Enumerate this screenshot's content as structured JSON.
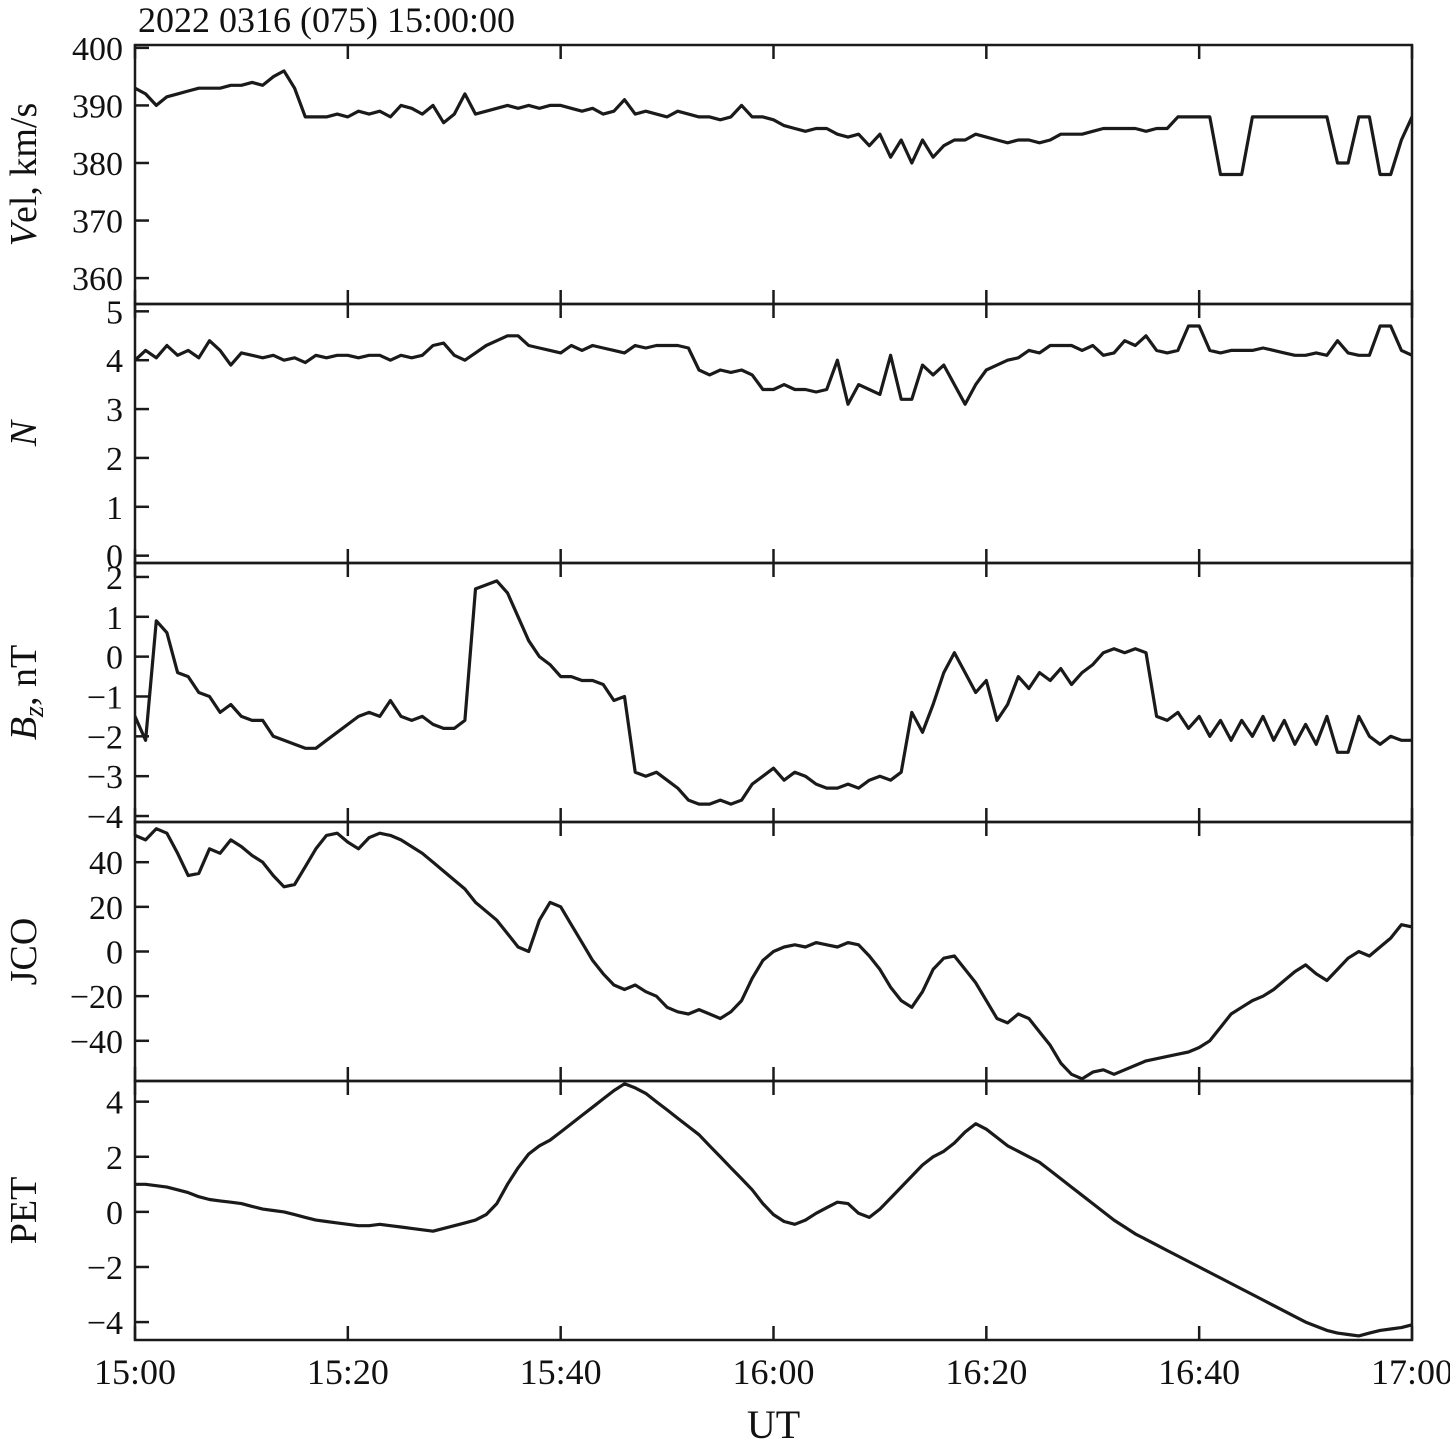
{
  "title": "2022 0316 (075) 15:00:00",
  "xlabel": "UT",
  "x_ticks": [
    "15:00",
    "15:20",
    "15:40",
    "16:00",
    "16:20",
    "16:40",
    "17:00"
  ],
  "x_tick_minutes": [
    0,
    20,
    40,
    60,
    80,
    100,
    120
  ],
  "x_range_minutes": [
    0,
    120
  ],
  "line_color": "#1a1a1a",
  "axis_color": "#1a1a1a",
  "background": "#ffffff",
  "chart_data": [
    {
      "type": "line",
      "name": "vel",
      "ylabel": "Vel, km/s",
      "ylabel_parts": [
        {
          "text": "V",
          "italic": true
        },
        {
          "text": "el, km/s",
          "italic": false
        }
      ],
      "ylim": [
        355.5,
        400.5
      ],
      "yticks": [
        360,
        370,
        380,
        390,
        400
      ],
      "values": [
        393,
        392,
        390,
        391.5,
        392,
        392.5,
        393,
        393,
        393,
        393.5,
        393.5,
        394,
        393.5,
        395,
        396,
        393,
        388,
        388,
        388,
        388.5,
        388,
        389,
        388.5,
        389,
        388,
        390,
        389.5,
        388.5,
        390,
        387,
        388.5,
        392,
        388.5,
        389,
        389.5,
        390,
        389.5,
        390,
        389.5,
        390,
        390,
        389.5,
        389,
        389.5,
        388.5,
        389,
        391,
        388.5,
        389,
        388.5,
        388,
        389,
        388.5,
        388,
        388,
        387.5,
        388,
        390,
        388,
        388,
        387.5,
        386.5,
        386,
        385.5,
        386,
        386,
        385,
        384.5,
        385,
        383,
        385,
        381,
        384,
        380,
        384,
        381,
        383,
        384,
        384,
        385,
        384.5,
        384,
        383.5,
        384,
        384,
        383.5,
        384,
        385,
        385,
        385,
        385.5,
        386,
        386,
        386,
        386,
        385.5,
        386,
        386,
        388,
        388,
        388,
        388,
        378,
        378,
        378,
        388,
        388,
        388,
        388,
        388,
        388,
        388,
        388,
        380,
        380,
        388,
        388,
        378,
        378,
        384,
        388
      ]
    },
    {
      "type": "line",
      "name": "n",
      "ylabel": "N",
      "ylabel_parts": [
        {
          "text": "N",
          "italic": true
        }
      ],
      "ylim": [
        -0.15,
        5.15
      ],
      "yticks": [
        0,
        1,
        2,
        3,
        4,
        5
      ],
      "values": [
        4.0,
        4.2,
        4.05,
        4.3,
        4.1,
        4.2,
        4.05,
        4.4,
        4.2,
        3.9,
        4.15,
        4.1,
        4.05,
        4.1,
        4.0,
        4.05,
        3.95,
        4.1,
        4.05,
        4.1,
        4.1,
        4.05,
        4.1,
        4.1,
        4.0,
        4.1,
        4.05,
        4.1,
        4.3,
        4.35,
        4.1,
        4.0,
        4.15,
        4.3,
        4.4,
        4.5,
        4.5,
        4.3,
        4.25,
        4.2,
        4.15,
        4.3,
        4.2,
        4.3,
        4.25,
        4.2,
        4.15,
        4.3,
        4.25,
        4.3,
        4.3,
        4.3,
        4.25,
        3.8,
        3.7,
        3.8,
        3.75,
        3.8,
        3.7,
        3.4,
        3.4,
        3.5,
        3.4,
        3.4,
        3.35,
        3.4,
        4.0,
        3.1,
        3.5,
        3.4,
        3.3,
        4.1,
        3.2,
        3.2,
        3.9,
        3.7,
        3.9,
        3.5,
        3.1,
        3.5,
        3.8,
        3.9,
        4.0,
        4.05,
        4.2,
        4.15,
        4.3,
        4.3,
        4.3,
        4.2,
        4.3,
        4.1,
        4.15,
        4.4,
        4.3,
        4.5,
        4.2,
        4.15,
        4.2,
        4.7,
        4.7,
        4.2,
        4.15,
        4.2,
        4.2,
        4.2,
        4.25,
        4.2,
        4.15,
        4.1,
        4.1,
        4.15,
        4.1,
        4.4,
        4.15,
        4.1,
        4.1,
        4.7,
        4.7,
        4.2,
        4.1
      ]
    },
    {
      "type": "line",
      "name": "bz",
      "ylabel": "Bz, nT",
      "ylabel_parts": [
        {
          "text": "B",
          "italic": true
        },
        {
          "text": "z",
          "italic": true,
          "sub": true
        },
        {
          "text": ", nT",
          "italic": false
        }
      ],
      "ylim": [
        -4.15,
        2.35
      ],
      "yticks": [
        -4,
        -3,
        -2,
        -1,
        0,
        1,
        2
      ],
      "values": [
        -1.5,
        -2.1,
        0.9,
        0.6,
        -0.4,
        -0.5,
        -0.9,
        -1.0,
        -1.4,
        -1.2,
        -1.5,
        -1.6,
        -1.6,
        -2.0,
        -2.1,
        -2.2,
        -2.3,
        -2.3,
        -2.1,
        -1.9,
        -1.7,
        -1.5,
        -1.4,
        -1.5,
        -1.1,
        -1.5,
        -1.6,
        -1.5,
        -1.7,
        -1.8,
        -1.8,
        -1.6,
        1.7,
        1.8,
        1.9,
        1.6,
        1.0,
        0.4,
        0.0,
        -0.2,
        -0.5,
        -0.5,
        -0.6,
        -0.6,
        -0.7,
        -1.1,
        -1.0,
        -2.9,
        -3.0,
        -2.9,
        -3.1,
        -3.3,
        -3.6,
        -3.7,
        -3.7,
        -3.6,
        -3.7,
        -3.6,
        -3.2,
        -3.0,
        -2.8,
        -3.1,
        -2.9,
        -3.0,
        -3.2,
        -3.3,
        -3.3,
        -3.2,
        -3.3,
        -3.1,
        -3.0,
        -3.1,
        -2.9,
        -1.4,
        -1.9,
        -1.2,
        -0.4,
        0.1,
        -0.4,
        -0.9,
        -0.6,
        -1.6,
        -1.2,
        -0.5,
        -0.8,
        -0.4,
        -0.6,
        -0.3,
        -0.7,
        -0.4,
        -0.2,
        0.1,
        0.2,
        0.1,
        0.2,
        0.1,
        -1.5,
        -1.6,
        -1.4,
        -1.8,
        -1.5,
        -2.0,
        -1.6,
        -2.1,
        -1.6,
        -2.0,
        -1.5,
        -2.1,
        -1.6,
        -2.2,
        -1.7,
        -2.2,
        -1.5,
        -2.4,
        -2.4,
        -1.5,
        -2.0,
        -2.2,
        -2.0,
        -2.1,
        -2.1
      ]
    },
    {
      "type": "line",
      "name": "jco",
      "ylabel": "JCO",
      "ylabel_parts": [
        {
          "text": "JCO",
          "italic": false
        }
      ],
      "ylim": [
        -58,
        58
      ],
      "yticks": [
        -40,
        -20,
        0,
        20,
        40
      ],
      "values": [
        52,
        50,
        55,
        53,
        44,
        34,
        35,
        46,
        44,
        50,
        47,
        43,
        40,
        34,
        29,
        30,
        38,
        46,
        52,
        53,
        49,
        46,
        51,
        53,
        52,
        50,
        47,
        44,
        40,
        36,
        32,
        28,
        22,
        18,
        14,
        8,
        2,
        0,
        14,
        22,
        20,
        12,
        4,
        -4,
        -10,
        -15,
        -17,
        -15,
        -18,
        -20,
        -25,
        -27,
        -28,
        -26,
        -28,
        -30,
        -27,
        -22,
        -12,
        -4,
        0,
        2,
        3,
        2,
        4,
        3,
        2,
        4,
        3,
        -2,
        -8,
        -16,
        -22,
        -25,
        -18,
        -8,
        -3,
        -2,
        -8,
        -14,
        -22,
        -30,
        -32,
        -28,
        -30,
        -36,
        -42,
        -50,
        -55,
        -57,
        -54,
        -53,
        -55,
        -53,
        -51,
        -49,
        -48,
        -47,
        -46,
        -45,
        -43,
        -40,
        -34,
        -28,
        -25,
        -22,
        -20,
        -17,
        -13,
        -9,
        -6,
        -10,
        -13,
        -8,
        -3,
        0,
        -2,
        2,
        6,
        12,
        11
      ]
    },
    {
      "type": "line",
      "name": "pet",
      "ylabel": "PET",
      "ylabel_parts": [
        {
          "text": "PET",
          "italic": false
        }
      ],
      "ylim": [
        -4.65,
        4.75
      ],
      "yticks": [
        -4,
        -2,
        0,
        2,
        4
      ],
      "values": [
        1.0,
        1.0,
        0.95,
        0.9,
        0.8,
        0.7,
        0.55,
        0.45,
        0.4,
        0.35,
        0.3,
        0.2,
        0.1,
        0.05,
        0.0,
        -0.1,
        -0.2,
        -0.3,
        -0.35,
        -0.4,
        -0.45,
        -0.5,
        -0.5,
        -0.45,
        -0.5,
        -0.55,
        -0.6,
        -0.65,
        -0.7,
        -0.6,
        -0.5,
        -0.4,
        -0.3,
        -0.1,
        0.3,
        1.0,
        1.6,
        2.1,
        2.4,
        2.6,
        2.9,
        3.2,
        3.5,
        3.8,
        4.1,
        4.4,
        4.65,
        4.5,
        4.3,
        4.0,
        3.7,
        3.4,
        3.1,
        2.8,
        2.4,
        2.0,
        1.6,
        1.2,
        0.8,
        0.3,
        -0.1,
        -0.35,
        -0.45,
        -0.3,
        -0.05,
        0.15,
        0.35,
        0.3,
        -0.05,
        -0.2,
        0.1,
        0.5,
        0.9,
        1.3,
        1.7,
        2.0,
        2.2,
        2.5,
        2.9,
        3.2,
        3.0,
        2.7,
        2.4,
        2.2,
        2.0,
        1.8,
        1.5,
        1.2,
        0.9,
        0.6,
        0.3,
        0.0,
        -0.3,
        -0.55,
        -0.8,
        -1.0,
        -1.2,
        -1.4,
        -1.6,
        -1.8,
        -2.0,
        -2.2,
        -2.4,
        -2.6,
        -2.8,
        -3.0,
        -3.2,
        -3.4,
        -3.6,
        -3.8,
        -4.0,
        -4.15,
        -4.3,
        -4.4,
        -4.45,
        -4.5,
        -4.4,
        -4.3,
        -4.25,
        -4.2,
        -4.1
      ]
    }
  ]
}
